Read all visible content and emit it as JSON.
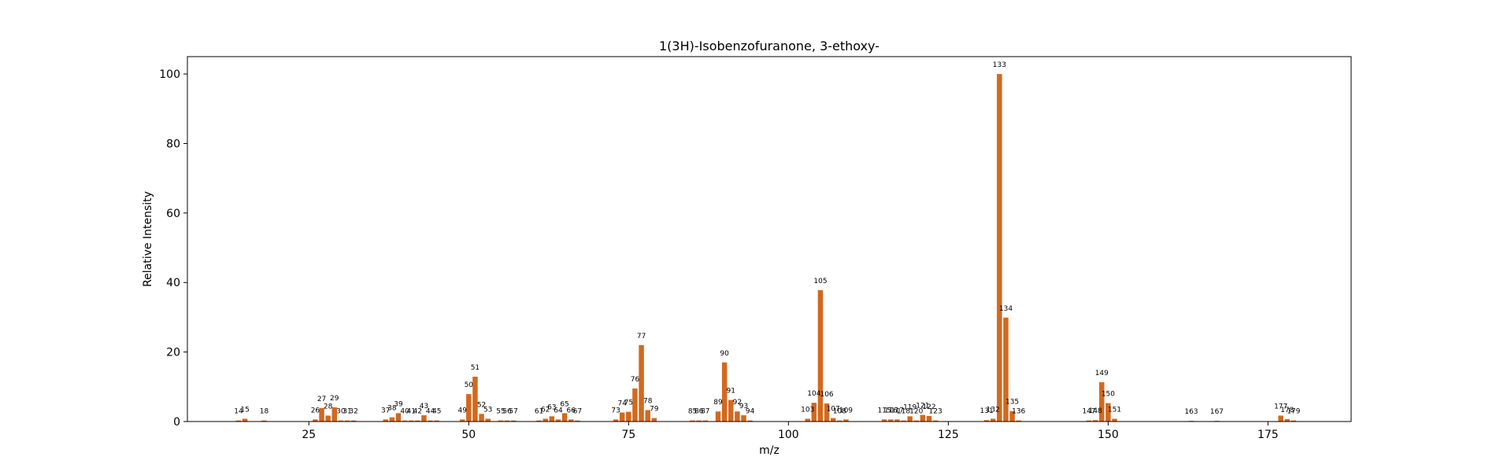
{
  "chart_data": {
    "type": "bar",
    "title": "1(3H)-Isobenzofuranone, 3-ethoxy-",
    "xlabel": "m/z",
    "ylabel": "Relative Intensity",
    "xlim": [
      6,
      188
    ],
    "ylim": [
      0,
      105
    ],
    "xticks": [
      25,
      50,
      75,
      100,
      125,
      150,
      175
    ],
    "yticks": [
      0,
      20,
      40,
      60,
      80,
      100
    ],
    "grid": false,
    "bar_color": "#d2691e",
    "peaks": [
      {
        "mz": 14,
        "intensity": 0.3
      },
      {
        "mz": 15,
        "intensity": 0.8
      },
      {
        "mz": 18,
        "intensity": 0.3
      },
      {
        "mz": 26,
        "intensity": 0.6
      },
      {
        "mz": 27,
        "intensity": 3.9
      },
      {
        "mz": 28,
        "intensity": 1.7
      },
      {
        "mz": 29,
        "intensity": 4.1
      },
      {
        "mz": 30,
        "intensity": 0.3
      },
      {
        "mz": 31,
        "intensity": 0.3
      },
      {
        "mz": 32,
        "intensity": 0.3
      },
      {
        "mz": 37,
        "intensity": 0.6
      },
      {
        "mz": 38,
        "intensity": 1.2
      },
      {
        "mz": 39,
        "intensity": 2.4
      },
      {
        "mz": 40,
        "intensity": 0.3
      },
      {
        "mz": 41,
        "intensity": 0.3
      },
      {
        "mz": 42,
        "intensity": 0.3
      },
      {
        "mz": 43,
        "intensity": 1.8
      },
      {
        "mz": 44,
        "intensity": 0.3
      },
      {
        "mz": 45,
        "intensity": 0.3
      },
      {
        "mz": 49,
        "intensity": 0.6
      },
      {
        "mz": 50,
        "intensity": 7.9
      },
      {
        "mz": 51,
        "intensity": 12.9
      },
      {
        "mz": 52,
        "intensity": 2.2
      },
      {
        "mz": 53,
        "intensity": 0.8
      },
      {
        "mz": 55,
        "intensity": 0.3
      },
      {
        "mz": 56,
        "intensity": 0.3
      },
      {
        "mz": 57,
        "intensity": 0.3
      },
      {
        "mz": 61,
        "intensity": 0.3
      },
      {
        "mz": 62,
        "intensity": 0.8
      },
      {
        "mz": 63,
        "intensity": 1.5
      },
      {
        "mz": 64,
        "intensity": 0.6
      },
      {
        "mz": 65,
        "intensity": 2.4
      },
      {
        "mz": 66,
        "intensity": 0.6
      },
      {
        "mz": 67,
        "intensity": 0.3
      },
      {
        "mz": 73,
        "intensity": 0.6
      },
      {
        "mz": 74,
        "intensity": 2.6
      },
      {
        "mz": 75,
        "intensity": 2.8
      },
      {
        "mz": 76,
        "intensity": 9.5
      },
      {
        "mz": 77,
        "intensity": 22.0
      },
      {
        "mz": 78,
        "intensity": 3.3
      },
      {
        "mz": 79,
        "intensity": 1.0
      },
      {
        "mz": 85,
        "intensity": 0.3
      },
      {
        "mz": 86,
        "intensity": 0.3
      },
      {
        "mz": 87,
        "intensity": 0.3
      },
      {
        "mz": 89,
        "intensity": 2.9
      },
      {
        "mz": 90,
        "intensity": 17.0
      },
      {
        "mz": 91,
        "intensity": 6.2
      },
      {
        "mz": 92,
        "intensity": 2.9
      },
      {
        "mz": 93,
        "intensity": 1.8
      },
      {
        "mz": 94,
        "intensity": 0.3
      },
      {
        "mz": 103,
        "intensity": 0.8
      },
      {
        "mz": 104,
        "intensity": 5.4
      },
      {
        "mz": 105,
        "intensity": 37.8
      },
      {
        "mz": 106,
        "intensity": 5.2
      },
      {
        "mz": 107,
        "intensity": 1.0
      },
      {
        "mz": 108,
        "intensity": 0.3
      },
      {
        "mz": 109,
        "intensity": 0.6
      },
      {
        "mz": 115,
        "intensity": 0.6
      },
      {
        "mz": 116,
        "intensity": 0.6
      },
      {
        "mz": 117,
        "intensity": 0.6
      },
      {
        "mz": 118,
        "intensity": 0.3
      },
      {
        "mz": 119,
        "intensity": 1.5
      },
      {
        "mz": 120,
        "intensity": 0.3
      },
      {
        "mz": 121,
        "intensity": 1.9
      },
      {
        "mz": 122,
        "intensity": 1.6
      },
      {
        "mz": 123,
        "intensity": 0.3
      },
      {
        "mz": 131,
        "intensity": 0.4
      },
      {
        "mz": 132,
        "intensity": 0.8
      },
      {
        "mz": 133,
        "intensity": 100.0
      },
      {
        "mz": 134,
        "intensity": 29.9
      },
      {
        "mz": 135,
        "intensity": 3.0
      },
      {
        "mz": 136,
        "intensity": 0.3
      },
      {
        "mz": 147,
        "intensity": 0.3
      },
      {
        "mz": 148,
        "intensity": 0.4
      },
      {
        "mz": 149,
        "intensity": 11.3
      },
      {
        "mz": 150,
        "intensity": 5.3
      },
      {
        "mz": 151,
        "intensity": 0.8
      },
      {
        "mz": 163,
        "intensity": 0.2
      },
      {
        "mz": 167,
        "intensity": 0.2
      },
      {
        "mz": 177,
        "intensity": 1.7
      },
      {
        "mz": 178,
        "intensity": 0.7
      },
      {
        "mz": 179,
        "intensity": 0.3
      }
    ]
  }
}
